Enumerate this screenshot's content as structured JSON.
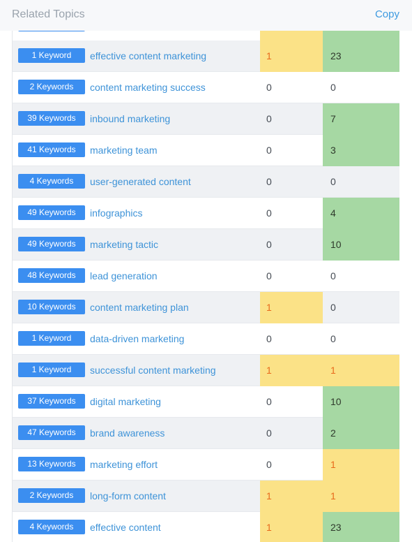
{
  "header": {
    "title": "Related Topics",
    "copy_label": "Copy"
  },
  "colors": {
    "tag": "#3b8ef0",
    "link": "#3e93d8",
    "yellow": "#fbe287",
    "green": "#a6d8a3",
    "orange_text": "#e8691b"
  },
  "rows": [
    {
      "keywords": "1 Keyword",
      "topic": "effective content marketing",
      "v1": "1",
      "v2": "23",
      "c1": "yellow",
      "c2": "green"
    },
    {
      "keywords": "2 Keywords",
      "topic": "content marketing success",
      "v1": "0",
      "v2": "0",
      "c1": "",
      "c2": ""
    },
    {
      "keywords": "39 Keywords",
      "topic": "inbound marketing",
      "v1": "0",
      "v2": "7",
      "c1": "",
      "c2": "green"
    },
    {
      "keywords": "41 Keywords",
      "topic": "marketing team",
      "v1": "0",
      "v2": "3",
      "c1": "",
      "c2": "green"
    },
    {
      "keywords": "4 Keywords",
      "topic": "user-generated content",
      "v1": "0",
      "v2": "0",
      "c1": "",
      "c2": ""
    },
    {
      "keywords": "49 Keywords",
      "topic": "infographics",
      "v1": "0",
      "v2": "4",
      "c1": "",
      "c2": "green"
    },
    {
      "keywords": "49 Keywords",
      "topic": "marketing tactic",
      "v1": "0",
      "v2": "10",
      "c1": "",
      "c2": "green"
    },
    {
      "keywords": "48 Keywords",
      "topic": "lead generation",
      "v1": "0",
      "v2": "0",
      "c1": "",
      "c2": ""
    },
    {
      "keywords": "10 Keywords",
      "topic": "content marketing plan",
      "v1": "1",
      "v2": "0",
      "c1": "yellow",
      "c2": ""
    },
    {
      "keywords": "1 Keyword",
      "topic": "data-driven marketing",
      "v1": "0",
      "v2": "0",
      "c1": "",
      "c2": ""
    },
    {
      "keywords": "1 Keyword",
      "topic": "successful content marketing",
      "v1": "1",
      "v2": "1",
      "c1": "yellow",
      "c2": "yellow"
    },
    {
      "keywords": "37 Keywords",
      "topic": "digital marketing",
      "v1": "0",
      "v2": "10",
      "c1": "",
      "c2": "green"
    },
    {
      "keywords": "47 Keywords",
      "topic": "brand awareness",
      "v1": "0",
      "v2": "2",
      "c1": "",
      "c2": "green"
    },
    {
      "keywords": "13 Keywords",
      "topic": "marketing effort",
      "v1": "0",
      "v2": "1",
      "c1": "",
      "c2": "yellow"
    },
    {
      "keywords": "2 Keywords",
      "topic": "long-form content",
      "v1": "1",
      "v2": "1",
      "c1": "yellow",
      "c2": "yellow"
    },
    {
      "keywords": "4 Keywords",
      "topic": "effective content",
      "v1": "1",
      "v2": "23",
      "c1": "yellow",
      "c2": "green"
    }
  ]
}
